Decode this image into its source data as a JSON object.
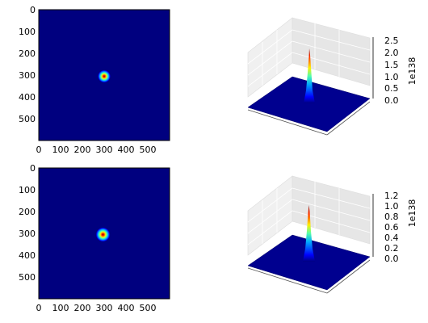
{
  "figure": {
    "panels": [
      {
        "heatmap": {
          "x_ticks": [
            "0",
            "100",
            "200",
            "300",
            "400",
            "500"
          ],
          "y_ticks": [
            "0",
            "100",
            "200",
            "300",
            "400",
            "500"
          ]
        },
        "surface": {
          "z_ticks": [
            "0.0",
            "0.5",
            "1.0",
            "1.5",
            "2.0",
            "2.5"
          ],
          "scale_label": "1e138"
        }
      },
      {
        "heatmap": {
          "x_ticks": [
            "0",
            "100",
            "200",
            "300",
            "400",
            "500"
          ],
          "y_ticks": [
            "0",
            "100",
            "200",
            "300",
            "400",
            "500"
          ]
        },
        "surface": {
          "z_ticks": [
            "0.0",
            "0.2",
            "0.4",
            "0.6",
            "0.8",
            "1.0",
            "1.2"
          ],
          "scale_label": "1e138"
        }
      }
    ]
  },
  "chart_data": [
    {
      "type": "heatmap",
      "colormap": "jet",
      "x_range": [
        0,
        600
      ],
      "y_range": [
        0,
        600
      ],
      "y_inverted": true,
      "peak": {
        "x": 300,
        "y": 305,
        "sigma": 10
      }
    },
    {
      "type": "surface3d",
      "colormap": "jet",
      "z_range": [
        0,
        2.5
      ],
      "z_peak": 2.45,
      "z_scale": "1e138"
    },
    {
      "type": "heatmap",
      "colormap": "jet",
      "x_range": [
        0,
        600
      ],
      "y_range": [
        0,
        600
      ],
      "y_inverted": true,
      "peak": {
        "x": 295,
        "y": 305,
        "sigma": 11
      }
    },
    {
      "type": "surface3d",
      "colormap": "jet",
      "z_range": [
        0,
        1.2
      ],
      "z_peak": 1.2,
      "z_scale": "1e138"
    }
  ]
}
